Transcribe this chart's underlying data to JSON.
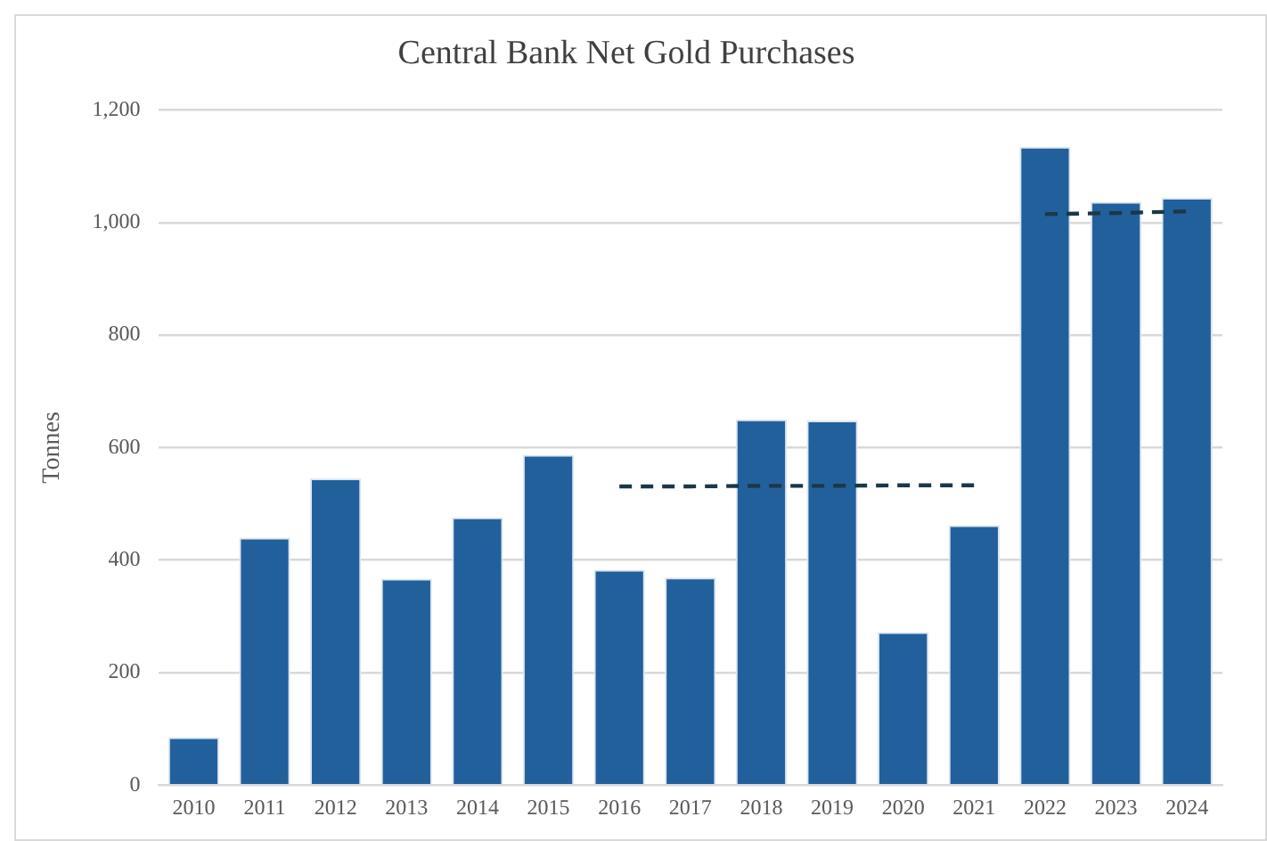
{
  "chart_data": {
    "type": "bar",
    "title": "Central Bank Net Gold Purchases",
    "ylabel": "Tonnes",
    "categories": [
      "2010",
      "2011",
      "2012",
      "2013",
      "2014",
      "2015",
      "2016",
      "2017",
      "2018",
      "2019",
      "2020",
      "2021",
      "2022",
      "2023",
      "2024"
    ],
    "series": [
      {
        "color": "#22609b",
        "values": [
          85,
          440,
          545,
          367,
          476,
          587,
          383,
          369,
          650,
          648,
          272,
          462,
          1135,
          1037,
          1044
        ]
      },
      {
        "type": "line",
        "color": "#1c3747",
        "line_style": "dashed",
        "marker": "none",
        "values": [
          null,
          null,
          null,
          null,
          null,
          null,
          531,
          531,
          532,
          532,
          533,
          533,
          null,
          null,
          null
        ]
      },
      {
        "type": "line",
        "color": "#1c3747",
        "line_style": "dashed",
        "marker": "none",
        "values": [
          null,
          null,
          null,
          null,
          null,
          null,
          null,
          null,
          null,
          null,
          null,
          null,
          1015,
          1017,
          1020
        ]
      }
    ],
    "ylim": [
      0,
      1200
    ],
    "yticks": [
      {
        "value": 0,
        "label": "0"
      },
      {
        "value": 200,
        "label": "200"
      },
      {
        "value": 400,
        "label": "400"
      },
      {
        "value": 600,
        "label": "600"
      },
      {
        "value": 800,
        "label": "800"
      },
      {
        "value": 1000,
        "label": "1,000"
      },
      {
        "value": 1200,
        "label": "1,200"
      }
    ],
    "grid": "y",
    "legend": false
  }
}
